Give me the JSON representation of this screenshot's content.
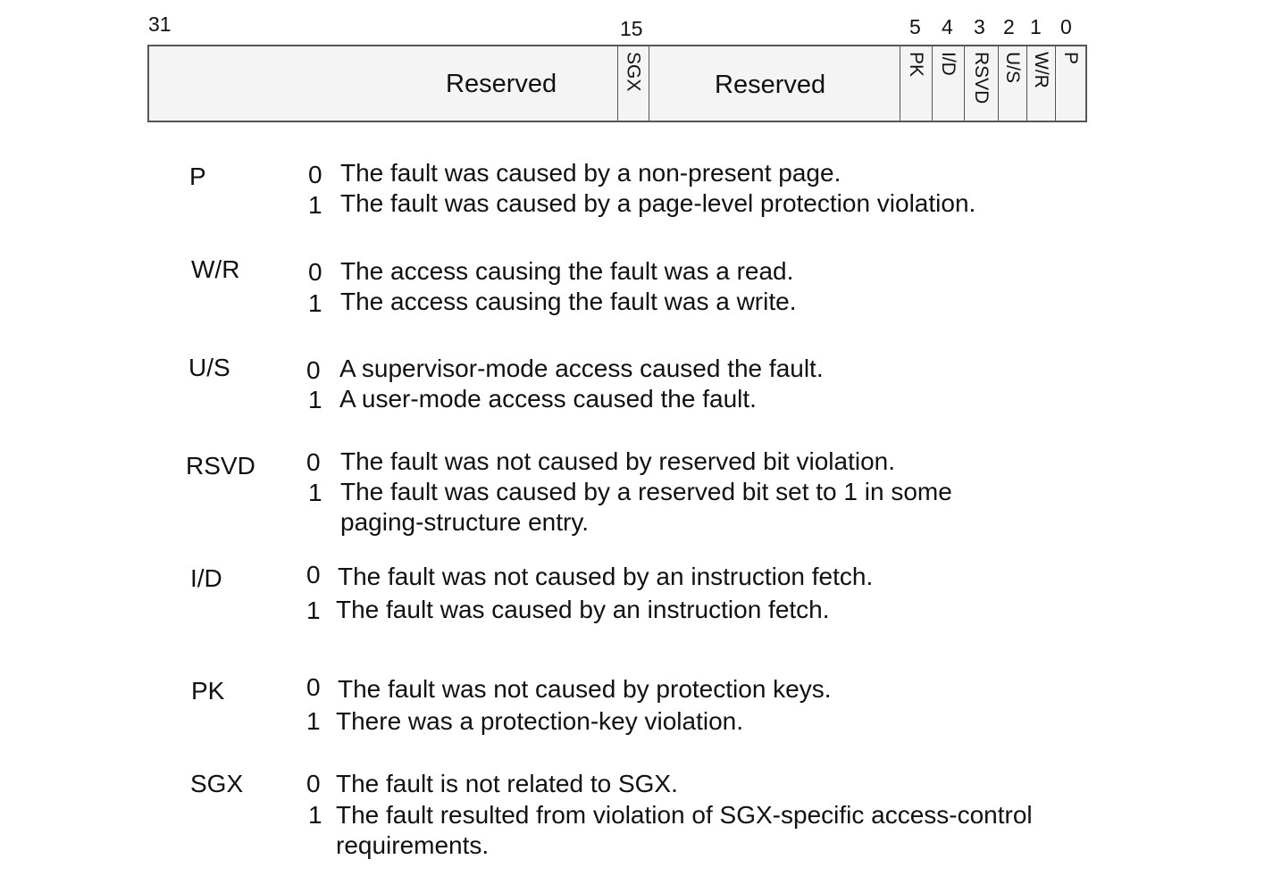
{
  "register": {
    "bit_numbers": [
      "31",
      "15",
      "5",
      "4",
      "3",
      "2",
      "1",
      "0"
    ],
    "fields": [
      {
        "label": "Reserved"
      },
      {
        "label": "SGX"
      },
      {
        "label": "Reserved"
      },
      {
        "label": "PK"
      },
      {
        "label": "I/D"
      },
      {
        "label": "RSVD"
      },
      {
        "label": "U/S"
      },
      {
        "label": "W/R"
      },
      {
        "label": "P"
      }
    ]
  },
  "legend": [
    {
      "flag": "P",
      "v0": "0",
      "d0": "The fault was caused by a non-present page.",
      "v1": "1",
      "d1": "The fault was caused by a page-level protection violation."
    },
    {
      "flag": "W/R",
      "v0": "0",
      "d0": "The access causing the fault was a read.",
      "v1": "1",
      "d1": "The access causing the fault was a write."
    },
    {
      "flag": "U/S",
      "v0": "0",
      "d0": "A supervisor-mode access caused the fault.",
      "v1": "1",
      "d1": "A user-mode access caused the fault."
    },
    {
      "flag": "RSVD",
      "v0": "0",
      "d0": "The fault was not caused by reserved bit violation.",
      "v1": "1",
      "d1": "The fault was caused by a reserved bit set to 1 in some",
      "d1b": "paging-structure entry."
    },
    {
      "flag": "I/D",
      "v0": "0",
      "d0": "The fault was not caused by an instruction fetch.",
      "v1": "1",
      "d1": "The fault was caused by an instruction fetch."
    },
    {
      "flag": "PK",
      "v0": "0",
      "d0": "The fault was not caused by protection keys.",
      "v1": "1",
      "d1": "There was a protection-key violation."
    },
    {
      "flag": "SGX",
      "v0": "0",
      "d0": "The fault is not related to SGX.",
      "v1": "1",
      "d1": "The fault resulted from violation of SGX-specific access-control",
      "d1b": "requirements."
    }
  ]
}
